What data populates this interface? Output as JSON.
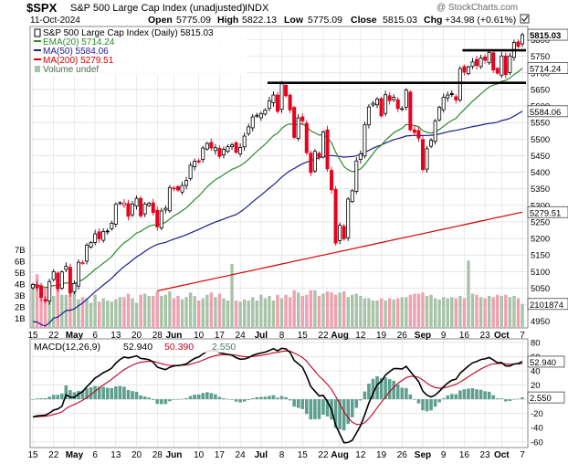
{
  "header": {
    "ticker": "$SPX",
    "name": "S&P 500 Large Cap Index (unadjusted)",
    "exchange": "INDX",
    "date": "11-Oct-2024",
    "open_label": "Open",
    "open": "5775.09",
    "high_label": "High",
    "high": "5822.13",
    "low_label": "Low",
    "low": "5775.09",
    "close_label": "Close",
    "close": "5815.03",
    "chg_label": "Chg",
    "chg": "+34.98 (+0.61%)",
    "watermark": "@ StockCharts.com",
    "check_icon": "checkbox-icon"
  },
  "legend": {
    "price": "S&P 500 Large Cap Index (Daily) 5815.03",
    "ema20": "EMA(20) 5714.24",
    "ma50": "MA(50) 5584.06",
    "ma200": "MA(200) 5279.51",
    "volume": "Volume undef"
  },
  "macd_legend": {
    "name": "MACD(12,26,9)",
    "macd": "52.940",
    "signal": "50.390",
    "hist": "2.550"
  },
  "colors": {
    "up": "#000000",
    "down": "#e8001c",
    "ema20": "#2a8a2a",
    "ma50": "#1c1c8c",
    "ma200": "#d40000",
    "vol_up": "#a8c4a8",
    "vol_down": "#f0a0b0",
    "macd": "#000000",
    "signal": "#c00020",
    "hist": "#5f9f8f",
    "grid": "#d8d8d8"
  },
  "chart_data": {
    "type": "candlestick",
    "title": "S&P 500 Large Cap Index (Daily)",
    "x_ticks": [
      "15",
      "22",
      "May",
      "6",
      "13",
      "20",
      "28",
      "Jun",
      "10",
      "17",
      "24",
      "Jul",
      "8",
      "15",
      "22",
      "Aug",
      "12",
      "19",
      "26",
      "Sep",
      "9",
      "16",
      "23",
      "Oct",
      "7"
    ],
    "price_axis": {
      "ticks": [
        4950,
        5000,
        5050,
        5100,
        5150,
        5200,
        5250,
        5300,
        5350,
        5400,
        5450,
        5500,
        5550,
        5600,
        5650,
        5700,
        5750,
        5800
      ],
      "ylim": [
        4930,
        5840
      ],
      "right_labels": [
        {
          "text": "5815.03",
          "value": 5815.03
        },
        {
          "text": "5714.24",
          "value": 5714.24
        },
        {
          "text": "5584.06",
          "value": 5584.06
        },
        {
          "text": "5279.51",
          "value": 5279.51
        }
      ]
    },
    "volume_axis": {
      "ticks": [
        "1B",
        "2B",
        "3B",
        "4B",
        "5B",
        "6B",
        "7B"
      ],
      "last_label": "2101874"
    },
    "macd_axis": {
      "ticks": [
        -60,
        -40,
        -20,
        0,
        20,
        40,
        60,
        80
      ],
      "ylim": [
        -68,
        85
      ],
      "right_labels": [
        {
          "text": "52.940",
          "value": 52.94
        },
        {
          "text": "2.550",
          "value": 2.55
        }
      ]
    },
    "closes": [
      5061,
      5051,
      5022,
      5011,
      5070,
      5100,
      5048,
      5099,
      5116,
      5036,
      5064,
      5128,
      5127,
      5180,
      5188,
      5214,
      5199,
      5221,
      5222,
      5246,
      5303,
      5308,
      5307,
      5267,
      5304,
      5321,
      5268,
      5304,
      5306,
      5278,
      5235,
      5283,
      5291,
      5354,
      5352,
      5346,
      5360,
      5375,
      5421,
      5433,
      5431,
      5473,
      5487,
      5473,
      5474,
      5448,
      5469,
      5477,
      5483,
      5460,
      5475,
      5509,
      5537,
      5567,
      5572,
      5577,
      5588,
      5616,
      5633,
      5584,
      5667,
      5631,
      5588,
      5505,
      5564,
      5555,
      5459,
      5399,
      5463,
      5446,
      5522,
      5410,
      5347,
      5186,
      5240,
      5199,
      5319,
      5344,
      5434,
      5455,
      5543,
      5597,
      5608,
      5621,
      5570,
      5634,
      5616,
      5626,
      5592,
      5592,
      5648,
      5528,
      5520,
      5503,
      5408,
      5471,
      5496,
      5555,
      5596,
      5626,
      5633,
      5634,
      5618,
      5713,
      5702,
      5718,
      5733,
      5722,
      5745,
      5738,
      5762,
      5709,
      5699,
      5751,
      5695,
      5751,
      5792,
      5780,
      5815
    ],
    "highs_above_close": 12,
    "lows_below_close": 12,
    "moving_average_endpoints": {
      "ema20": 5714.24,
      "ma50": 5584.06,
      "ma200": 5279.51
    },
    "horizontal_lines": [
      {
        "value": 5670,
        "from_index": 57,
        "to_index": 118
      },
      {
        "value": 5768,
        "from_index": 104,
        "to_index": 118
      }
    ],
    "volume_billions": [
      3.7,
      4.7,
      3.8,
      3.5,
      3.1,
      2.8,
      3.4,
      2.9,
      2.9,
      4.2,
      3.4,
      2.5,
      2.7,
      2.6,
      2.2,
      2.9,
      2.3,
      2.6,
      2.4,
      2.3,
      2.5,
      2.7,
      2.7,
      3.0,
      2.6,
      2.2,
      2.9,
      3.0,
      2.8,
      2.8,
      3.2,
      2.8,
      2.9,
      3.2,
      2.6,
      2.8,
      2.5,
      2.7,
      3.1,
      2.8,
      2.4,
      2.6,
      2.9,
      3.1,
      2.7,
      3.0,
      2.6,
      2.4,
      5.6,
      2.4,
      2.3,
      2.5,
      2.4,
      2.7,
      2.4,
      2.9,
      2.6,
      2.8,
      2.4,
      2.9,
      2.6,
      2.9,
      2.7,
      3.3,
      3.1,
      2.8,
      2.9,
      3.3,
      3.3,
      2.8,
      3.0,
      3.2,
      3.1,
      2.9,
      3.1,
      3.2,
      2.7,
      2.9,
      3.0,
      2.8,
      2.6,
      2.6,
      2.4,
      2.4,
      2.6,
      2.4,
      2.6,
      2.5,
      2.6,
      2.7,
      2.7,
      2.9,
      3.0,
      3.0,
      3.1,
      2.8,
      2.9,
      2.6,
      2.5,
      2.7,
      2.6,
      2.7,
      2.6,
      2.8,
      2.6,
      5.9,
      3.0,
      2.9,
      2.7,
      2.6,
      2.8,
      2.7,
      2.9,
      2.8,
      2.9,
      2.7,
      2.8,
      2.6,
      2.1
    ],
    "macd_values": "computed from closes (EMA12 - EMA26)",
    "macd_last": {
      "macd": 52.94,
      "signal": 50.39,
      "hist": 2.55
    }
  }
}
